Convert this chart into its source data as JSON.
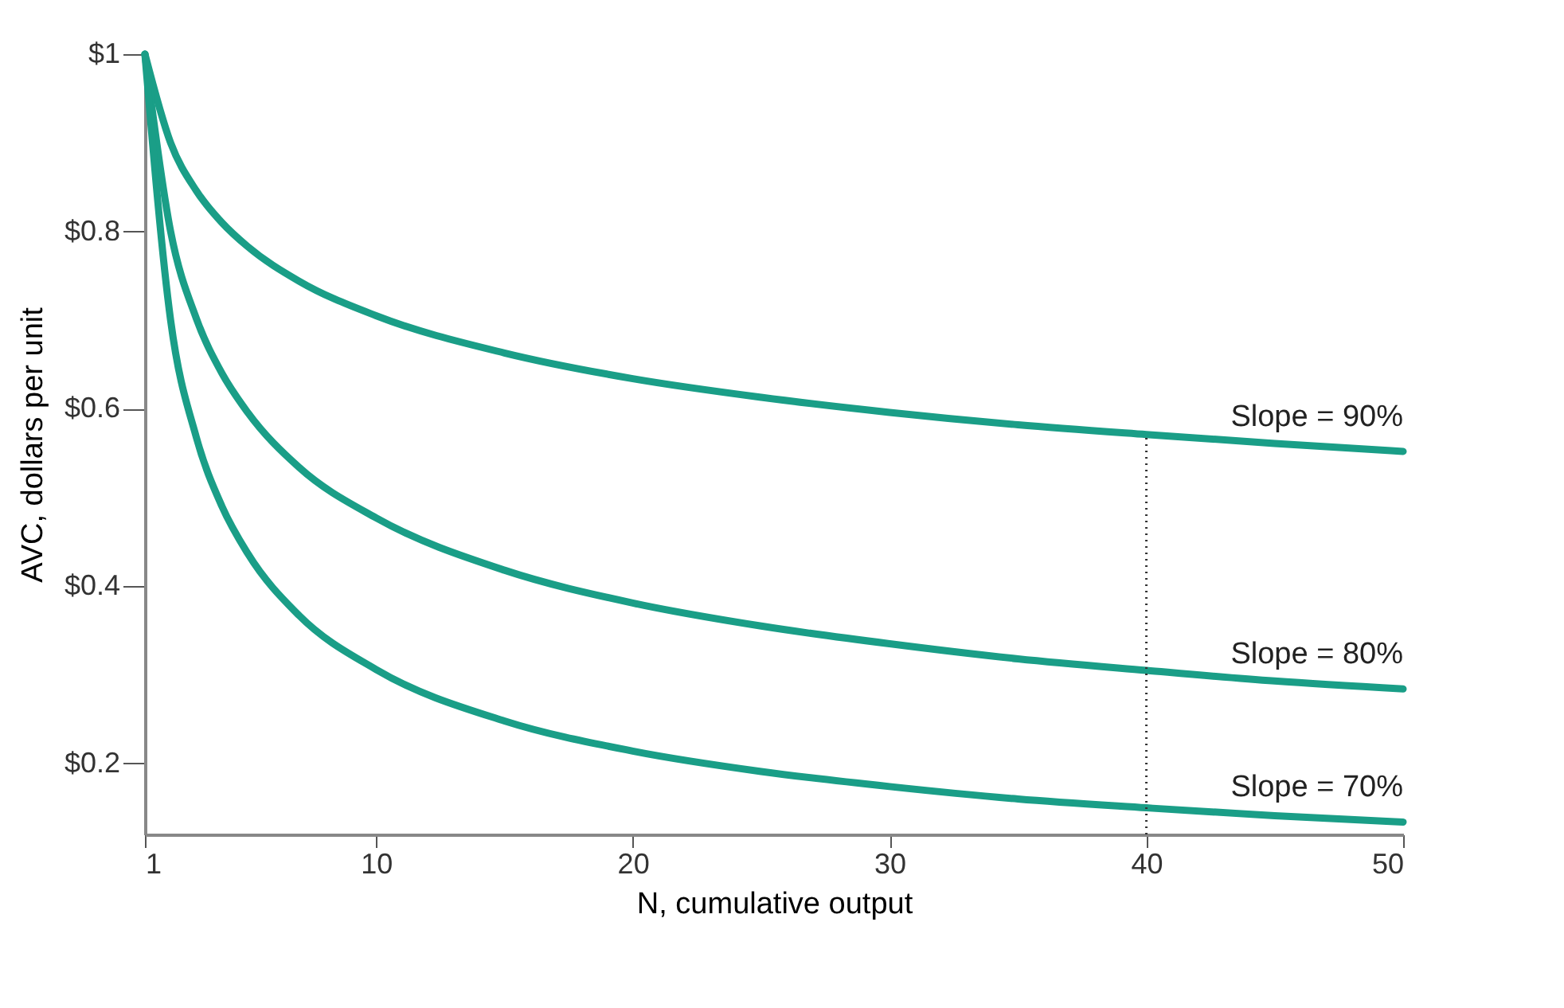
{
  "chart_data": {
    "type": "line",
    "xlabel": "N, cumulative output",
    "ylabel": "AVC, dollars per unit",
    "x": [
      1,
      2,
      3,
      4,
      5,
      7,
      10,
      15,
      20,
      25,
      30,
      35,
      40,
      45,
      50
    ],
    "series": [
      {
        "name": "Slope = 90%",
        "color": "#1a9e87",
        "values": [
          1,
          0.9,
          0.846,
          0.81,
          0.783,
          0.744,
          0.705,
          0.663,
          0.634,
          0.613,
          0.596,
          0.582,
          0.571,
          0.561,
          0.552
        ]
      },
      {
        "name": "Slope = 80%",
        "color": "#1a9e87",
        "values": [
          1,
          0.8,
          0.702,
          0.64,
          0.596,
          0.534,
          0.477,
          0.418,
          0.381,
          0.355,
          0.335,
          0.318,
          0.305,
          0.293,
          0.284
        ]
      },
      {
        "name": "Slope = 70%",
        "color": "#1a9e87",
        "values": [
          1,
          0.7,
          0.568,
          0.49,
          0.437,
          0.367,
          0.306,
          0.248,
          0.214,
          0.191,
          0.174,
          0.16,
          0.15,
          0.141,
          0.134
        ]
      }
    ],
    "xlim": [
      1,
      50
    ],
    "xticks": [
      1,
      10,
      20,
      30,
      40,
      50
    ],
    "ylim": [
      0.12,
      1
    ],
    "yticks": [
      {
        "value": 0.2,
        "label": "$0.2"
      },
      {
        "value": 0.4,
        "label": "$0.4"
      },
      {
        "value": 0.6,
        "label": "$0.6"
      },
      {
        "value": 0.8,
        "label": "$0.8"
      },
      {
        "value": 1,
        "label": "$1"
      }
    ],
    "ref_lines": [
      {
        "axis": "x",
        "value": 40,
        "label": null,
        "line_style": "dotted",
        "color": "#333333"
      }
    ],
    "grid": false,
    "legend": false,
    "marker": "none",
    "line_style": "solid"
  }
}
